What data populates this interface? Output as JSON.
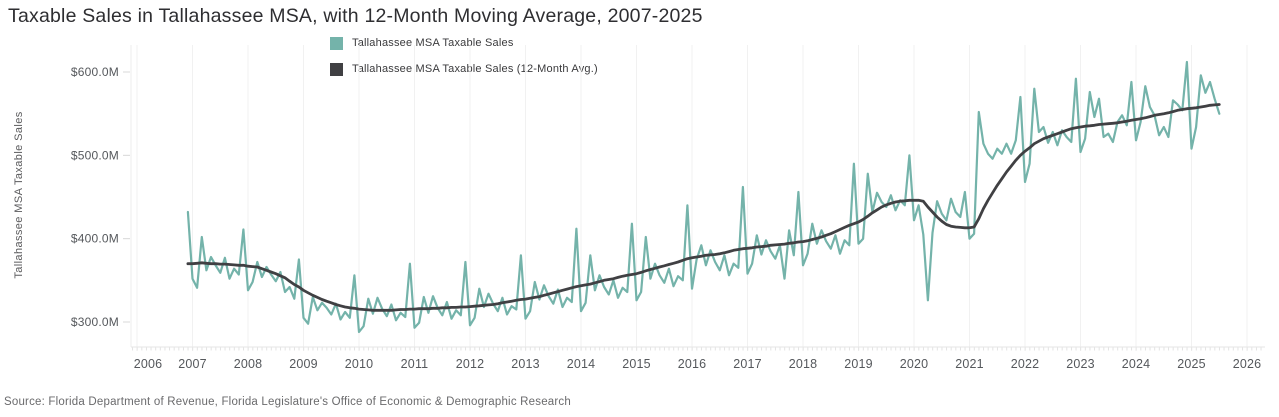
{
  "title": "Taxable Sales in Tallahassee MSA, with 12-Month Moving Average, 2007-2025",
  "source": "Source: Florida Department of Revenue, Florida Legislature's Office of Economic & Demographic Research",
  "chart_data": {
    "type": "line",
    "title": "Taxable Sales in Tallahassee MSA, with 12-Month Moving Average, 2007-2025",
    "xlabel": "",
    "ylabel": "Tallahassee MSA Taxable Sales",
    "units": "USD millions per month",
    "xlim": [
      2005.9,
      2026.33
    ],
    "ylim": [
      270,
      632
    ],
    "grid": "vertical-year-gridlines",
    "legend_position": "top-inside",
    "y_ticks": [
      {
        "value": 600,
        "label": "$600.0M"
      },
      {
        "value": 500,
        "label": "$500.0M"
      },
      {
        "value": 400,
        "label": "$400.0M"
      },
      {
        "value": 300,
        "label": "$300.0M"
      }
    ],
    "x_ticks": [
      "2006",
      "2007",
      "2008",
      "2009",
      "2010",
      "2011",
      "2012",
      "2013",
      "2014",
      "2015",
      "2016",
      "2017",
      "2018",
      "2019",
      "2020",
      "2021",
      "2022",
      "2023",
      "2024",
      "2025",
      "2026"
    ],
    "series": [
      {
        "name": "Tallahassee MSA Taxable Sales",
        "color": "#74b3aa",
        "start": "2006-12",
        "values": [
          432,
          352,
          341,
          402,
          362,
          378,
          368,
          359,
          377,
          352,
          364,
          357,
          411,
          338,
          348,
          372,
          354,
          366,
          357,
          349,
          360,
          336,
          342,
          328,
          375,
          305,
          298,
          330,
          314,
          323,
          317,
          309,
          322,
          303,
          312,
          305,
          356,
          288,
          295,
          328,
          310,
          329,
          316,
          307,
          321,
          302,
          311,
          306,
          370,
          293,
          299,
          330,
          311,
          331,
          317,
          308,
          324,
          304,
          314,
          308,
          372,
          296,
          305,
          340,
          318,
          334,
          322,
          313,
          329,
          309,
          319,
          315,
          380,
          304,
          313,
          348,
          327,
          344,
          331,
          322,
          339,
          318,
          329,
          324,
          412,
          313,
          323,
          380,
          338,
          356,
          342,
          333,
          350,
          329,
          341,
          336,
          418,
          326,
          336,
          402,
          352,
          370,
          356,
          347,
          364,
          343,
          355,
          350,
          440,
          340,
          375,
          392,
          368,
          386,
          372,
          362,
          380,
          356,
          370,
          365,
          462,
          358,
          370,
          404,
          381,
          398,
          385,
          376,
          392,
          352,
          410,
          380,
          456,
          368,
          382,
          418,
          394,
          410,
          397,
          388,
          404,
          382,
          398,
          392,
          490,
          394,
          400,
          478,
          432,
          455,
          444,
          438,
          452,
          434,
          446,
          440,
          500,
          422,
          440,
          405,
          326,
          407,
          445,
          430,
          422,
          448,
          432,
          426,
          456,
          400,
          406,
          552,
          514,
          502,
          496,
          508,
          502,
          514,
          502,
          518,
          570,
          468,
          490,
          580,
          528,
          534,
          515,
          528,
          512,
          530,
          522,
          516,
          592,
          504,
          520,
          576,
          546,
          568,
          522,
          526,
          516,
          540,
          548,
          536,
          588,
          518,
          540,
          583,
          558,
          548,
          524,
          534,
          522,
          566,
          561,
          554,
          612,
          508,
          534,
          596,
          575,
          588,
          568,
          550
        ]
      },
      {
        "name": "Tallahassee MSA Taxable Sales (12-Month Avg.)",
        "color": "#404043",
        "start": "2006-12",
        "values": [
          370,
          370,
          370.5,
          371,
          370.5,
          370,
          370,
          369.5,
          369.5,
          369,
          368.5,
          368,
          368,
          367,
          366.5,
          366,
          364,
          362,
          360,
          358,
          355.5,
          353,
          349,
          345,
          342,
          338,
          335,
          332,
          329.5,
          327,
          325,
          323,
          321,
          319.5,
          318,
          317,
          316.5,
          315.5,
          315,
          314.5,
          314,
          314,
          314,
          314,
          314,
          314.5,
          315,
          315,
          315.5,
          315.5,
          316,
          316,
          316,
          316.5,
          316.5,
          317,
          317,
          317.5,
          317.5,
          318,
          318,
          318.5,
          319,
          319.5,
          320,
          320.5,
          321,
          322,
          323,
          324,
          325,
          326,
          327,
          327.5,
          328.5,
          329.5,
          330.5,
          332,
          333.5,
          335,
          336.5,
          338,
          339.5,
          341,
          342.5,
          343.5,
          344.5,
          345.5,
          347,
          348.5,
          350,
          351,
          352,
          353.5,
          355,
          356,
          357,
          358,
          359.5,
          361.5,
          363,
          364.5,
          366,
          367.5,
          369,
          370.5,
          372,
          374,
          376,
          377,
          378,
          379,
          380,
          380.5,
          381,
          382,
          383,
          384.5,
          386,
          387,
          388,
          388.5,
          389,
          390,
          390.5,
          391,
          392,
          392.5,
          393,
          393.5,
          394.5,
          395,
          396,
          396.5,
          397.5,
          399,
          400.5,
          402,
          404,
          406,
          408.5,
          411,
          413.5,
          416,
          418,
          420,
          423,
          427,
          431,
          434.5,
          438,
          440.5,
          442.5,
          444,
          445,
          445.5,
          446,
          446,
          446,
          445,
          438,
          432,
          426,
          421,
          417,
          415,
          414,
          413.5,
          413,
          413,
          414,
          424,
          436,
          446,
          455,
          464,
          472,
          480,
          487,
          494,
          500,
          505,
          509,
          514,
          517,
          520,
          522,
          524,
          526,
          528,
          530,
          532,
          533,
          534,
          535,
          535.5,
          536,
          537,
          537.5,
          538,
          538.5,
          539,
          540,
          541,
          542,
          543,
          544,
          545,
          546.5,
          548,
          549,
          550,
          551,
          552.5,
          554,
          555,
          556,
          556.5,
          557,
          558,
          559,
          560,
          560.5,
          561
        ]
      }
    ]
  }
}
